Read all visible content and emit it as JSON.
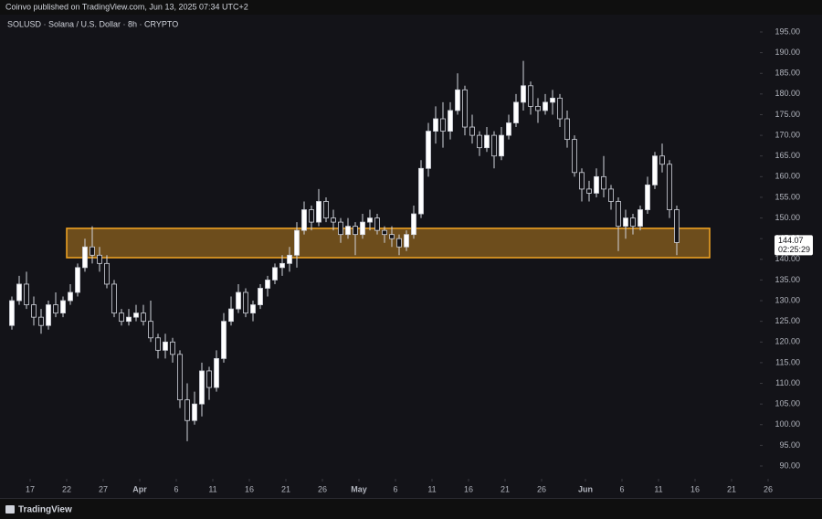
{
  "header": "Coinvo published on TradingView.com, Jun 13, 2025 07:34 UTC+2",
  "footer": "TradingView",
  "chart_data": {
    "type": "candlestick",
    "title": "SOLUSD · Solana / U.S. Dollar · 8h · CRYPTO",
    "x": [
      "Mar 14",
      "Mar 15",
      "Mar 16",
      "Mar 17",
      "Mar 18",
      "Mar 19",
      "Mar 20",
      "Mar 21",
      "Mar 22",
      "Mar 23",
      "Mar 24",
      "Mar 25",
      "Mar 26",
      "Mar 27",
      "Mar 28",
      "Mar 29",
      "Mar 30",
      "Mar 31",
      "Apr 1",
      "Apr 2",
      "Apr 3",
      "Apr 4",
      "Apr 5",
      "Apr 6",
      "Apr 7",
      "Apr 8",
      "Apr 9",
      "Apr 10",
      "Apr 11",
      "Apr 12",
      "Apr 13",
      "Apr 14",
      "Apr 15",
      "Apr 16",
      "Apr 17",
      "Apr 18",
      "Apr 19",
      "Apr 20",
      "Apr 21",
      "Apr 22",
      "Apr 23",
      "Apr 24",
      "Apr 25",
      "Apr 26",
      "Apr 27",
      "Apr 28",
      "Apr 29",
      "Apr 30",
      "May 1",
      "May 2",
      "May 3",
      "May 4",
      "May 5",
      "May 6",
      "May 7",
      "May 8",
      "May 9",
      "May 10",
      "May 11",
      "May 12",
      "May 13",
      "May 14",
      "May 15",
      "May 16",
      "May 17",
      "May 18",
      "May 19",
      "May 20",
      "May 21",
      "May 22",
      "May 23",
      "May 24",
      "May 25",
      "May 26",
      "May 27",
      "May 28",
      "May 29",
      "May 30",
      "May 31",
      "Jun 1",
      "Jun 2",
      "Jun 3",
      "Jun 4",
      "Jun 5",
      "Jun 6",
      "Jun 7",
      "Jun 8",
      "Jun 9",
      "Jun 10",
      "Jun 11",
      "Jun 12",
      "Jun 13"
    ],
    "open": [
      124,
      130,
      134,
      129,
      126,
      124,
      129,
      127,
      130,
      132,
      138,
      143,
      141,
      139,
      134,
      127,
      125,
      126,
      127,
      125,
      121,
      118,
      120,
      117,
      106,
      101,
      105,
      113,
      109,
      116,
      125,
      128,
      132,
      127,
      129,
      133,
      135,
      138,
      139,
      141,
      147,
      152,
      149,
      154,
      150,
      149,
      146,
      148,
      146,
      149,
      150,
      147,
      146,
      145,
      143,
      146,
      151,
      162,
      171,
      174,
      171,
      176,
      181,
      172,
      170,
      167,
      170,
      165,
      170,
      173,
      178,
      182,
      177,
      176,
      178,
      179,
      174,
      169,
      161,
      157,
      156,
      160,
      157,
      154,
      148,
      150,
      148,
      152,
      158,
      165,
      163,
      152
    ],
    "high": [
      131,
      136,
      137,
      131,
      128,
      130,
      132,
      131,
      134,
      139,
      145,
      148,
      143,
      141,
      135,
      128,
      128,
      129,
      129,
      130,
      122,
      122,
      121,
      118,
      110,
      108,
      115,
      114,
      118,
      127,
      131,
      134,
      133,
      130,
      134,
      136,
      139,
      141,
      143,
      149,
      154,
      153,
      157,
      155,
      152,
      150,
      150,
      149,
      151,
      152,
      151,
      148,
      148,
      146,
      147,
      153,
      164,
      173,
      177,
      178,
      178,
      185,
      182,
      175,
      171,
      172,
      171,
      172,
      175,
      180,
      188,
      183,
      179,
      180,
      181,
      180,
      176,
      170,
      162,
      159,
      162,
      165,
      158,
      155,
      152,
      151,
      153,
      160,
      166,
      168,
      164,
      153
    ],
    "low": [
      123,
      129,
      128,
      124,
      122,
      123,
      126,
      126,
      129,
      131,
      137,
      139,
      137,
      133,
      126,
      124,
      124,
      125,
      124,
      120,
      116,
      116,
      115,
      104,
      96,
      100,
      102,
      106,
      108,
      115,
      124,
      127,
      126,
      125,
      128,
      131,
      134,
      136,
      137,
      138,
      146,
      147,
      148,
      149,
      147,
      144,
      145,
      141,
      145,
      147,
      146,
      144,
      143,
      141,
      142,
      145,
      150,
      160,
      168,
      167,
      169,
      175,
      170,
      168,
      165,
      166,
      162,
      164,
      169,
      172,
      176,
      175,
      173,
      175,
      175,
      172,
      167,
      160,
      154,
      154,
      155,
      155,
      152,
      142,
      145,
      146,
      147,
      151,
      157,
      161,
      150,
      141
    ],
    "close": [
      130,
      134,
      129,
      126,
      124,
      129,
      127,
      130,
      132,
      138,
      143,
      141,
      139,
      134,
      127,
      125,
      126,
      127,
      125,
      121,
      118,
      120,
      117,
      106,
      101,
      105,
      113,
      109,
      116,
      125,
      128,
      132,
      127,
      129,
      133,
      135,
      138,
      139,
      141,
      147,
      152,
      149,
      154,
      150,
      149,
      146,
      148,
      146,
      149,
      150,
      147,
      146,
      145,
      143,
      146,
      151,
      162,
      171,
      174,
      171,
      176,
      181,
      172,
      170,
      167,
      170,
      165,
      170,
      173,
      178,
      182,
      177,
      176,
      178,
      179,
      174,
      169,
      161,
      157,
      156,
      160,
      157,
      154,
      148,
      150,
      148,
      152,
      158,
      165,
      163,
      152,
      144.07
    ],
    "up_color": "#ffffff",
    "down_color": "#131318",
    "countdown": "02:25:29",
    "zone": {
      "from": "Mar 22",
      "to": "Jun 18",
      "low": 140.4,
      "high": 147.5,
      "color": "#f5a623"
    },
    "xlim": [
      "Mar 13",
      "Jun 26"
    ],
    "xticks": [
      {
        "value": "Mar 17",
        "label": "17"
      },
      {
        "value": "Mar 22",
        "label": "22"
      },
      {
        "value": "Mar 27",
        "label": "27"
      },
      {
        "value": "Apr 1",
        "label": "Apr"
      },
      {
        "value": "Apr 6",
        "label": "6"
      },
      {
        "value": "Apr 11",
        "label": "11"
      },
      {
        "value": "Apr 16",
        "label": "16"
      },
      {
        "value": "Apr 21",
        "label": "21"
      },
      {
        "value": "Apr 26",
        "label": "26"
      },
      {
        "value": "May 1",
        "label": "May"
      },
      {
        "value": "May 6",
        "label": "6"
      },
      {
        "value": "May 11",
        "label": "11"
      },
      {
        "value": "May 16",
        "label": "16"
      },
      {
        "value": "May 21",
        "label": "21"
      },
      {
        "value": "May 26",
        "label": "26"
      },
      {
        "value": "Jun 1",
        "label": "Jun"
      },
      {
        "value": "Jun 6",
        "label": "6"
      },
      {
        "value": "Jun 11",
        "label": "11"
      },
      {
        "value": "Jun 16",
        "label": "16"
      },
      {
        "value": "Jun 21",
        "label": "21"
      },
      {
        "value": "Jun 26",
        "label": "26"
      }
    ],
    "ylim": [
      90,
      195
    ],
    "yticks": [
      {
        "value": 90,
        "label": "90.00"
      },
      {
        "value": 95,
        "label": "95.00"
      },
      {
        "value": 100,
        "label": "100.00"
      },
      {
        "value": 105,
        "label": "105.00"
      },
      {
        "value": 110,
        "label": "110.00"
      },
      {
        "value": 115,
        "label": "115.00"
      },
      {
        "value": 120,
        "label": "120.00"
      },
      {
        "value": 125,
        "label": "125.00"
      },
      {
        "value": 130,
        "label": "130.00"
      },
      {
        "value": 135,
        "label": "135.00"
      },
      {
        "value": 140,
        "label": "140.00"
      },
      {
        "value": 145,
        "label": "145.00"
      },
      {
        "value": 150,
        "label": "150.00"
      },
      {
        "value": 155,
        "label": "155.00"
      },
      {
        "value": 160,
        "label": "160.00"
      },
      {
        "value": 165,
        "label": "165.00"
      },
      {
        "value": 170,
        "label": "170.00"
      },
      {
        "value": 175,
        "label": "175.00"
      },
      {
        "value": 180,
        "label": "180.00"
      },
      {
        "value": 185,
        "label": "185.00"
      },
      {
        "value": 190,
        "label": "190.00"
      },
      {
        "value": 195,
        "label": "195.00"
      }
    ],
    "grid": false
  }
}
